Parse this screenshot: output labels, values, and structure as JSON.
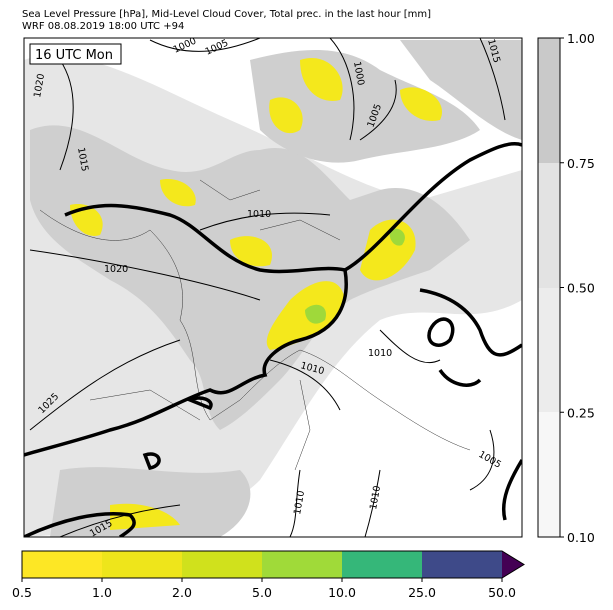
{
  "header": {
    "line1": "Sea Level Pressure [hPa], Mid-Level Cloud Cover, Total prec. in the last hour [mm]",
    "line2": "WRF 08.08.2019 18:00 UTC +94"
  },
  "map": {
    "time_label": "16 UTC Mon",
    "contour_labels": [
      "1000",
      "1005",
      "1015",
      "1020",
      "1015",
      "1000",
      "1005",
      "1010",
      "1020",
      "1010",
      "1010",
      "1025",
      "1005",
      "1010",
      "1010",
      "1015"
    ]
  },
  "cloud_colorbar": {
    "ticks": [
      "0.10",
      "0.25",
      "0.50",
      "0.75",
      "1.00"
    ]
  },
  "precip_colorbar": {
    "ticks": [
      "0.5",
      "1.0",
      "2.0",
      "5.0",
      "10.0",
      "25.0",
      "50.0"
    ]
  }
}
